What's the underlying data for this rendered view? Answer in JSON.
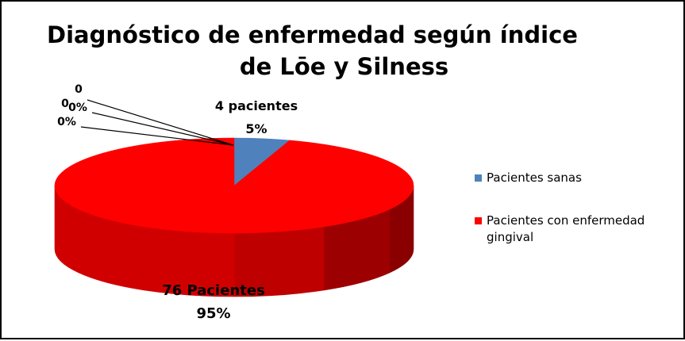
{
  "chart_data": {
    "type": "pie",
    "title_lines": [
      "Diagnóstico de enfermedad según índice",
      "de Lōe y Silness"
    ],
    "slices": [
      {
        "name": "Pacientes sanas",
        "value": 4,
        "percent_label": "5%",
        "count_label": "4 pacientes",
        "color": "#4f81bd"
      },
      {
        "name": "Pacientes con enfermedad gingival",
        "value": 76,
        "percent_label": "95%",
        "count_label": "76 Pacientes",
        "color": "#ff0000"
      },
      {
        "value": 0,
        "percent_label": "0%",
        "count_label": "0"
      },
      {
        "value": 0,
        "percent_label": "0%",
        "count_label": "0"
      }
    ],
    "legend": {
      "position": "right",
      "items": [
        "Pacientes sanas",
        "Pacientes con enfermedad gingival"
      ]
    },
    "style": "3d-pie"
  }
}
